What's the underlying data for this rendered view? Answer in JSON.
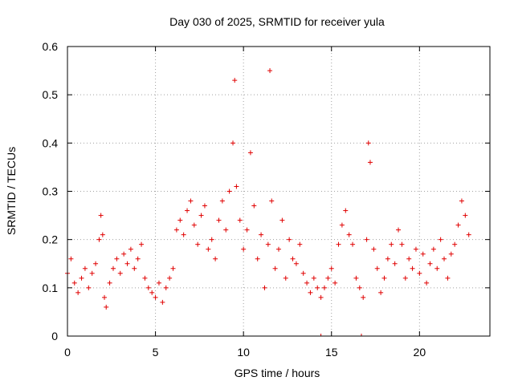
{
  "chart_data": {
    "type": "scatter",
    "title": "Day 030 of 2025, SRMTID for receiver yula",
    "xlabel": "GPS time / hours",
    "ylabel": "SRMTID / TECUs",
    "xlim": [
      0,
      24
    ],
    "ylim": [
      0,
      0.6
    ],
    "xticks": [
      0,
      5,
      10,
      15,
      20
    ],
    "yticks": [
      0,
      0.1,
      0.2,
      0.3,
      0.4,
      0.5,
      0.6
    ],
    "xtick_labels": [
      "0",
      "5",
      "10",
      "15",
      "20"
    ],
    "ytick_labels": [
      "0",
      "0.1",
      "0.2",
      "0.3",
      "0.4",
      "0.5",
      "0.6"
    ],
    "grid": true,
    "marker": "+",
    "color": "#e00000",
    "series": [
      {
        "name": "SRMTID",
        "x": [
          0.0,
          0.2,
          0.4,
          0.6,
          0.8,
          1.0,
          1.2,
          1.4,
          1.6,
          1.8,
          1.9,
          2.0,
          2.1,
          2.2,
          2.4,
          2.6,
          2.8,
          3.0,
          3.2,
          3.4,
          3.6,
          3.8,
          4.0,
          4.2,
          4.4,
          4.6,
          4.8,
          5.0,
          5.2,
          5.4,
          5.6,
          5.8,
          6.0,
          6.2,
          6.4,
          6.6,
          6.8,
          7.0,
          7.2,
          7.4,
          7.6,
          7.8,
          8.0,
          8.2,
          8.4,
          8.6,
          8.8,
          9.0,
          9.2,
          9.4,
          9.5,
          9.6,
          9.8,
          10.0,
          10.2,
          10.4,
          10.6,
          10.8,
          11.0,
          11.2,
          11.4,
          11.5,
          11.6,
          11.8,
          12.0,
          12.2,
          12.4,
          12.6,
          12.8,
          13.0,
          13.2,
          13.4,
          13.6,
          13.8,
          14.0,
          14.2,
          14.4,
          14.6,
          14.8,
          15.0,
          15.2,
          15.4,
          15.6,
          15.8,
          16.0,
          16.2,
          16.4,
          16.6,
          16.8,
          17.0,
          17.1,
          17.2,
          17.4,
          17.6,
          17.8,
          18.0,
          18.2,
          18.4,
          18.6,
          18.8,
          19.0,
          19.2,
          19.4,
          19.6,
          19.8,
          20.0,
          20.2,
          20.4,
          20.6,
          20.8,
          21.0,
          21.2,
          21.4,
          21.6,
          21.8,
          22.0,
          22.2,
          22.4,
          22.6,
          22.8
        ],
        "y": [
          0.13,
          0.16,
          0.11,
          0.09,
          0.12,
          0.14,
          0.1,
          0.13,
          0.15,
          0.2,
          0.25,
          0.21,
          0.08,
          0.06,
          0.11,
          0.14,
          0.16,
          0.13,
          0.17,
          0.15,
          0.18,
          0.14,
          0.16,
          0.19,
          0.12,
          0.1,
          0.09,
          0.08,
          0.11,
          0.07,
          0.1,
          0.12,
          0.14,
          0.22,
          0.24,
          0.21,
          0.26,
          0.28,
          0.23,
          0.19,
          0.25,
          0.27,
          0.18,
          0.2,
          0.16,
          0.24,
          0.28,
          0.22,
          0.3,
          0.4,
          0.53,
          0.31,
          0.24,
          0.18,
          0.22,
          0.38,
          0.27,
          0.16,
          0.21,
          0.1,
          0.19,
          0.55,
          0.28,
          0.14,
          0.18,
          0.24,
          0.12,
          0.2,
          0.16,
          0.15,
          0.19,
          0.13,
          0.11,
          0.09,
          0.12,
          0.1,
          0.08,
          0.1,
          0.12,
          0.14,
          0.11,
          0.19,
          0.23,
          0.26,
          0.21,
          0.19,
          0.12,
          0.1,
          0.08,
          0.2,
          0.4,
          0.36,
          0.18,
          0.14,
          0.09,
          0.12,
          0.16,
          0.19,
          0.15,
          0.22,
          0.19,
          0.12,
          0.16,
          0.14,
          0.18,
          0.13,
          0.17,
          0.11,
          0.15,
          0.18,
          0.14,
          0.2,
          0.16,
          0.12,
          0.17,
          0.19,
          0.23,
          0.28,
          0.25,
          0.21
        ]
      }
    ],
    "zero_markers_x": [
      14.4,
      16.7
    ]
  }
}
